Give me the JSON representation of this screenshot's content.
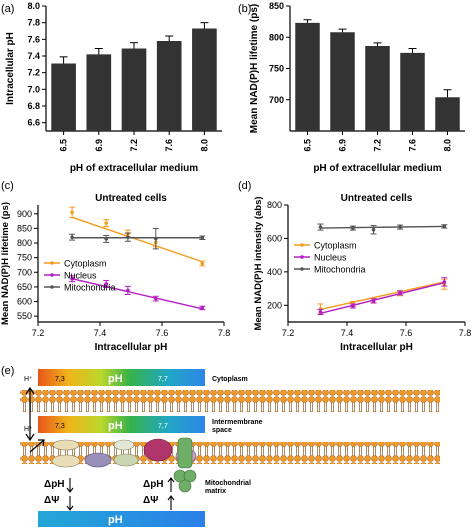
{
  "colors": {
    "bar": "#333333",
    "cytoplasm": "#f39c1f",
    "nucleus": "#b41fc4",
    "mitochondria": "#555555",
    "membrane": "#e8901e",
    "gradient_top": [
      "#e85a1b",
      "#f0c419",
      "#8fd13a",
      "#2db04f",
      "#23a6c9",
      "#2f8fe6"
    ]
  },
  "chart_data": [
    {
      "panel": "(a)",
      "type": "bar",
      "title": "",
      "xlabel": "pH of extracellular medium",
      "ylabel": "Intracellular pH",
      "categories": [
        "6.5",
        "6.9",
        "7.2",
        "7.6",
        "8.0"
      ],
      "values": [
        7.31,
        7.42,
        7.49,
        7.58,
        7.73
      ],
      "errors": [
        0.08,
        0.07,
        0.07,
        0.06,
        0.07
      ],
      "ylim": [
        6.5,
        8.0
      ],
      "yticks": [
        "6.6",
        "6.8",
        "7.0",
        "7.2",
        "7.4",
        "7.6",
        "7.8",
        "8.0"
      ]
    },
    {
      "panel": "(b)",
      "type": "bar",
      "title": "",
      "xlabel": "pH of extracellular medium",
      "ylabel": "Mean NAD(P)H lifetime (ps)",
      "categories": [
        "6.5",
        "6.9",
        "7.2",
        "7.6",
        "8.0"
      ],
      "values": [
        823,
        808,
        786,
        775,
        704
      ],
      "errors": [
        5,
        5,
        5,
        7,
        12
      ],
      "ylim": [
        650,
        850
      ],
      "yticks": [
        "700",
        "750",
        "800",
        "850"
      ]
    },
    {
      "panel": "(c)",
      "type": "line",
      "title": "Untreated cells",
      "xlabel": "Intracellular pH",
      "ylabel": "Mean NAD(P)H lifetime (ps)",
      "xlim": [
        7.2,
        7.8
      ],
      "ylim": [
        530,
        930
      ],
      "xticks": [
        "7.2",
        "7.4",
        "7.6",
        "7.8"
      ],
      "yticks": [
        "550",
        "600",
        "650",
        "700",
        "750",
        "800",
        "850",
        "900"
      ],
      "x": [
        7.31,
        7.42,
        7.49,
        7.58,
        7.73
      ],
      "legend": "left",
      "series": [
        {
          "name": "Cytoplasm",
          "values": [
            905,
            868,
            832,
            802,
            730
          ],
          "errors": [
            18,
            12,
            12,
            15,
            8
          ],
          "fit": [
            888,
            736
          ]
        },
        {
          "name": "Nucleus",
          "values": [
            678,
            660,
            638,
            610,
            578
          ],
          "errors": [
            10,
            12,
            14,
            8,
            6
          ],
          "fit": [
            678,
            575
          ]
        },
        {
          "name": "Mitochondria",
          "values": [
            820,
            814,
            820,
            815,
            818
          ],
          "errors": [
            10,
            12,
            14,
            35,
            6
          ],
          "fit": [
            818,
            818
          ]
        }
      ]
    },
    {
      "panel": "(d)",
      "type": "line",
      "title": "Untreated cells",
      "xlabel": "Intracellular pH",
      "ylabel": "Mean NAD(P)H intensity (abs)",
      "xlim": [
        7.2,
        7.8
      ],
      "ylim": [
        100,
        800
      ],
      "xticks": [
        "7.2",
        "7.4",
        "7.6",
        "7.8"
      ],
      "yticks": [
        "200",
        "400",
        "600",
        "800"
      ],
      "x": [
        7.31,
        7.42,
        7.49,
        7.58,
        7.73
      ],
      "legend": "left",
      "series": [
        {
          "name": "Cytoplasm",
          "values": [
            178,
            208,
            228,
            272,
            326
          ],
          "errors": [
            30,
            15,
            15,
            15,
            30
          ],
          "fit": [
            175,
            340
          ]
        },
        {
          "name": "Nucleus",
          "values": [
            160,
            196,
            226,
            274,
            340
          ],
          "errors": [
            15,
            12,
            12,
            12,
            25
          ],
          "fit": [
            152,
            335
          ]
        },
        {
          "name": "Mitochondria",
          "values": [
            668,
            662,
            652,
            668,
            672
          ],
          "errors": [
            18,
            12,
            25,
            12,
            10
          ],
          "fit": [
            662,
            672
          ]
        }
      ]
    }
  ],
  "diagram": {
    "panel": "(e)",
    "top_bar": {
      "left": "7,3",
      "center": "pH",
      "right": "7,7",
      "side_label": "Cytoplasm"
    },
    "mid_bar": {
      "left": "7,3",
      "center": "pH",
      "right": "7,7",
      "side_label": "Intermembrane space"
    },
    "bottom_bar": {
      "center": "pH"
    },
    "proton_labels": [
      "H⁺",
      "H⁺"
    ],
    "mito_label": "Mitochondrial matrix",
    "left_delta": {
      "ph": "ΔpH",
      "psi": "ΔΨ"
    },
    "right_delta": {
      "ph": "ΔpH",
      "psi": "ΔΨ"
    }
  }
}
